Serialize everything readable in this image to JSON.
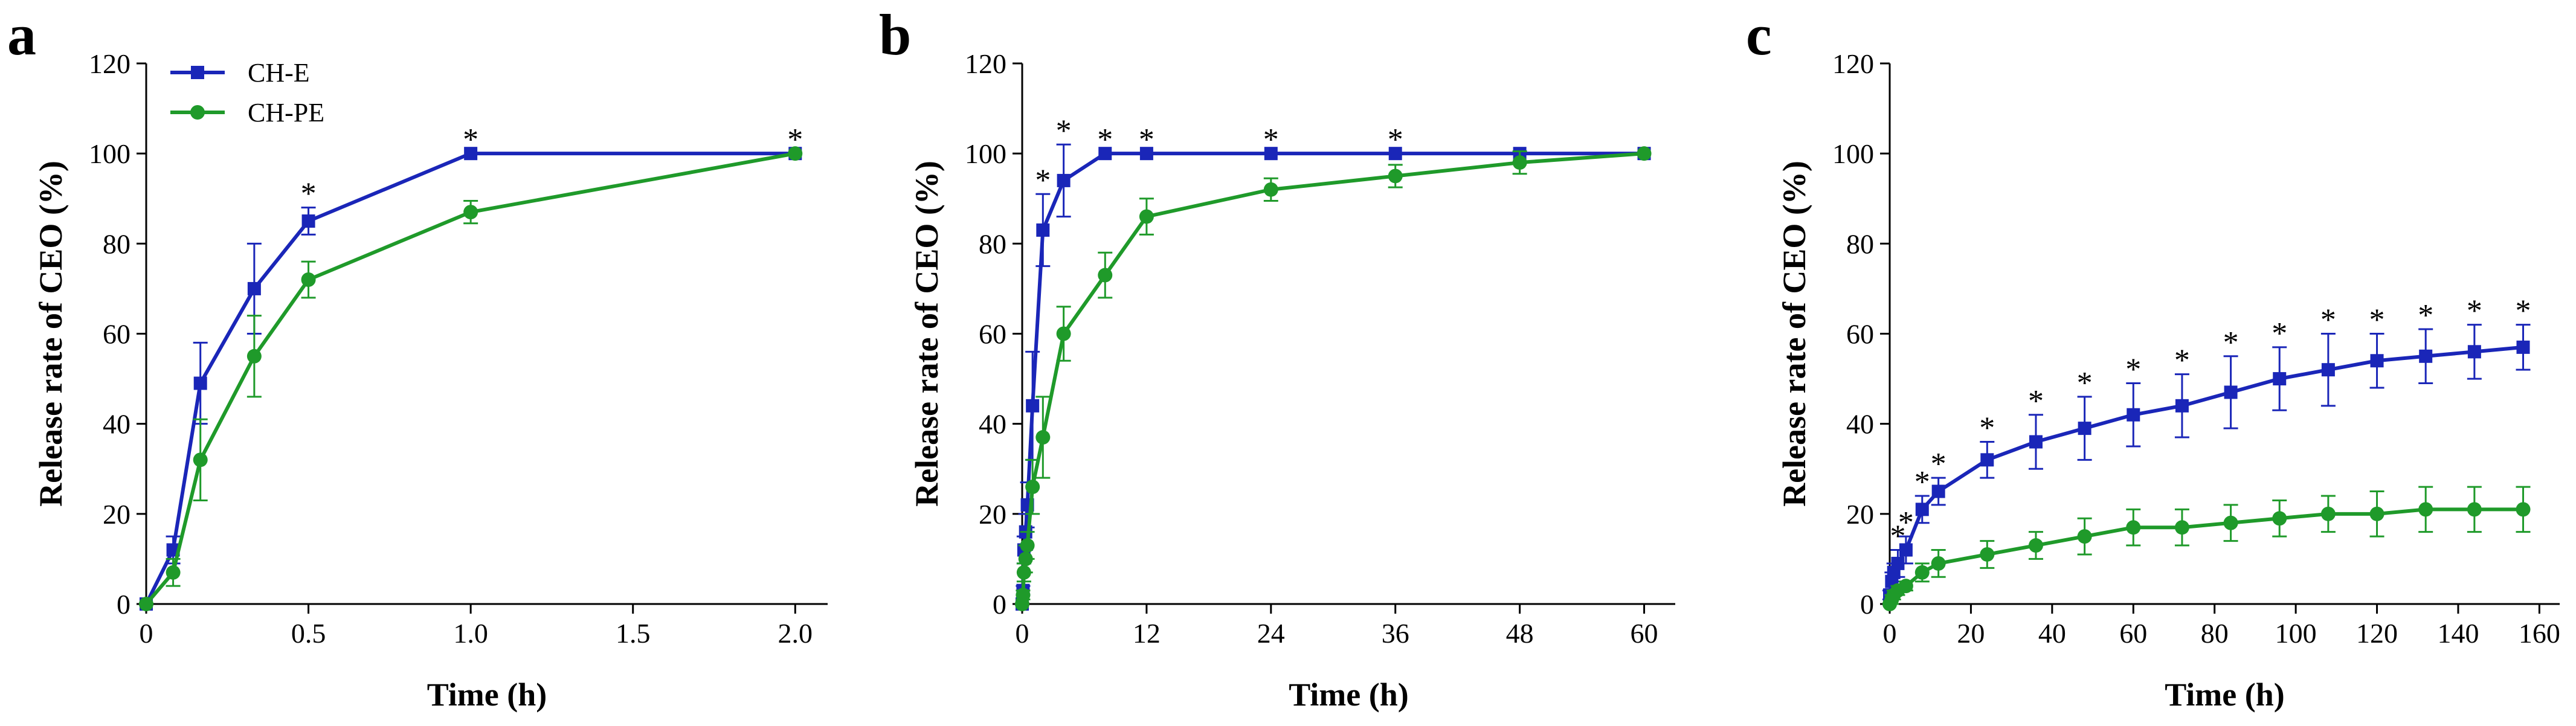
{
  "series_colors": {
    "CH-E": "#1a26b8",
    "CH-PE": "#1f9a2a"
  },
  "legend": [
    {
      "name": "CH-E",
      "marker": "square"
    },
    {
      "name": "CH-PE",
      "marker": "circle"
    }
  ],
  "chart_data": [
    {
      "type": "line",
      "panel_label": "a",
      "xlabel": "Time (h)",
      "ylabel": "Release rate of CEO (%)",
      "xlim": [
        0,
        2.1
      ],
      "ylim": [
        0,
        120
      ],
      "xticks": [
        0,
        0.5,
        1,
        1.5,
        2
      ],
      "xtick_labels": [
        "0",
        "0.5",
        "1.0",
        "1.5",
        "2.0"
      ],
      "yticks": [
        0,
        20,
        40,
        60,
        80,
        100,
        120
      ],
      "ytick_labels": [
        "0",
        "20",
        "40",
        "60",
        "80",
        "100",
        "120"
      ],
      "grid": false,
      "legend_position": "top-left",
      "series": [
        {
          "name": "CH-E",
          "x": [
            0,
            0.083,
            0.167,
            0.333,
            0.5,
            1,
            2
          ],
          "y": [
            0,
            12,
            49,
            70,
            85,
            100,
            100
          ],
          "err": [
            0,
            3,
            9,
            10,
            3,
            0,
            0
          ],
          "sig": [
            false,
            false,
            false,
            false,
            true,
            true,
            true
          ]
        },
        {
          "name": "CH-PE",
          "x": [
            0,
            0.083,
            0.167,
            0.333,
            0.5,
            1,
            2
          ],
          "y": [
            0,
            7,
            32,
            55,
            72,
            87,
            100
          ],
          "err": [
            0,
            3,
            9,
            9,
            4,
            2.5,
            0
          ]
        }
      ]
    },
    {
      "type": "line",
      "panel_label": "b",
      "xlabel": "Time (h)",
      "ylabel": "Release rate of CEO (%)",
      "xlim": [
        0,
        63
      ],
      "ylim": [
        0,
        120
      ],
      "xticks": [
        0,
        12,
        24,
        36,
        48,
        60
      ],
      "xtick_labels": [
        "0",
        "12",
        "24",
        "36",
        "48",
        "60"
      ],
      "yticks": [
        0,
        20,
        40,
        60,
        80,
        100,
        120
      ],
      "ytick_labels": [
        "0",
        "20",
        "40",
        "60",
        "80",
        "100",
        "120"
      ],
      "grid": false,
      "series": [
        {
          "name": "CH-E",
          "x": [
            0,
            0.083,
            0.167,
            0.333,
            0.5,
            1,
            2,
            4,
            8,
            12,
            24,
            36,
            48,
            60
          ],
          "y": [
            0,
            3,
            12,
            16,
            22,
            44,
            83,
            94,
            100,
            100,
            100,
            100,
            100,
            100
          ],
          "err": [
            0,
            1,
            3,
            4,
            5,
            12,
            8,
            8,
            0,
            0,
            0,
            0,
            0,
            0
          ],
          "sig": [
            false,
            false,
            false,
            false,
            false,
            false,
            true,
            true,
            true,
            true,
            true,
            true,
            false,
            false
          ]
        },
        {
          "name": "CH-PE",
          "x": [
            0,
            0.083,
            0.167,
            0.333,
            0.5,
            1,
            2,
            4,
            8,
            12,
            24,
            36,
            48,
            60
          ],
          "y": [
            0,
            2,
            7,
            10,
            13,
            26,
            37,
            60,
            73,
            86,
            92,
            95,
            98,
            100
          ],
          "err": [
            0,
            1,
            2,
            3,
            3,
            6,
            9,
            6,
            5,
            4,
            2.5,
            2.5,
            2.5,
            0
          ]
        }
      ]
    },
    {
      "type": "line",
      "panel_label": "c",
      "xlabel": "Time (h)",
      "ylabel": "Release rate of CEO (%)",
      "xlim": [
        0,
        165
      ],
      "ylim": [
        0,
        120
      ],
      "xticks": [
        0,
        20,
        40,
        60,
        80,
        100,
        120,
        140,
        160
      ],
      "xtick_labels": [
        "0",
        "20",
        "40",
        "60",
        "80",
        "100",
        "120",
        "140",
        "160"
      ],
      "yticks": [
        0,
        20,
        40,
        60,
        80,
        100,
        120
      ],
      "ytick_labels": [
        "0",
        "20",
        "40",
        "60",
        "80",
        "100",
        "120"
      ],
      "grid": false,
      "series": [
        {
          "name": "CH-E",
          "x": [
            0,
            0.5,
            1,
            2,
            4,
            8,
            12,
            24,
            36,
            48,
            60,
            72,
            84,
            96,
            108,
            120,
            132,
            144,
            156
          ],
          "y": [
            2,
            5,
            7,
            9,
            12,
            21,
            25,
            32,
            36,
            39,
            42,
            44,
            47,
            50,
            52,
            54,
            55,
            56,
            57
          ],
          "err": [
            1,
            2,
            2,
            3,
            3,
            3,
            3,
            4,
            6,
            7,
            7,
            7,
            8,
            7,
            8,
            6,
            6,
            6,
            5
          ],
          "sig": [
            false,
            false,
            false,
            true,
            true,
            true,
            true,
            true,
            true,
            true,
            true,
            true,
            true,
            true,
            true,
            true,
            true,
            true,
            true
          ]
        },
        {
          "name": "CH-PE",
          "x": [
            0,
            0.5,
            1,
            2,
            4,
            8,
            12,
            24,
            36,
            48,
            60,
            72,
            84,
            96,
            108,
            120,
            132,
            144,
            156
          ],
          "y": [
            0,
            1,
            2,
            3,
            4,
            7,
            9,
            11,
            13,
            15,
            17,
            17,
            18,
            19,
            20,
            20,
            21,
            21,
            21
          ],
          "err": [
            0,
            1,
            1,
            1,
            1,
            2,
            3,
            3,
            3,
            4,
            4,
            4,
            4,
            4,
            4,
            5,
            5,
            5,
            5
          ]
        }
      ]
    }
  ]
}
